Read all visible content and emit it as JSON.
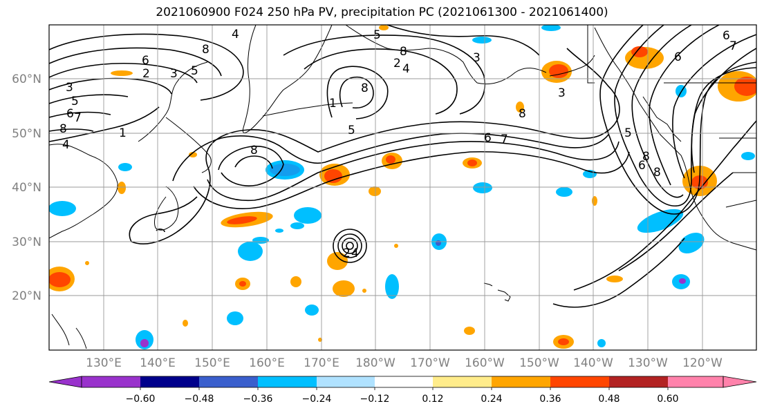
{
  "title": "2021060900 F024 250 hPa PV, precipitation PC (2021061300 - 2021061400)",
  "map": {
    "lat_labels": [
      "60°N",
      "50°N",
      "40°N",
      "30°N",
      "20°N"
    ],
    "lat_values": [
      60,
      50,
      40,
      30,
      20
    ],
    "lon_labels": [
      "130°E",
      "140°E",
      "150°E",
      "160°E",
      "170°E",
      "180°W",
      "170°W",
      "160°W",
      "150°W",
      "140°W",
      "130°W",
      "120°W"
    ],
    "lon_extent": [
      120,
      250
    ],
    "lat_extent": [
      10,
      70
    ],
    "contour_labels": [
      "4",
      "8",
      "6",
      "2",
      "3",
      "5",
      "3",
      "5",
      "6",
      "7",
      "8",
      "4",
      "1",
      "8",
      "5",
      "2",
      "4",
      "8",
      "3",
      "1",
      "5",
      "6",
      "7",
      "8",
      "3",
      "8",
      "6",
      "5",
      "8",
      "6",
      "8",
      "6",
      "7",
      "2",
      "4"
    ],
    "grid": true
  },
  "colorbar": {
    "ticks": [
      "−0.60",
      "−0.48",
      "−0.36",
      "−0.24",
      "−0.12",
      "0.12",
      "0.24",
      "0.36",
      "0.48",
      "0.60"
    ],
    "colors": [
      "#9932CC",
      "#00008B",
      "#3A5FCD",
      "#00BFFF",
      "#B0E2FF",
      "#FFFFFF",
      "#FFEC8B",
      "#FFA500",
      "#FF4500",
      "#B22222",
      "#FF82AB"
    ]
  }
}
